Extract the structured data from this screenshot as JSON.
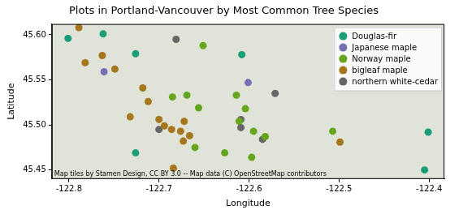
{
  "chart_data": {
    "type": "scatter",
    "title": "Plots in Portland-Vancouver by Most Common Tree Species",
    "x_label": "Longitude",
    "y_label": "Latitude",
    "annotations": [
      "Map tiles by Stamen Design, CC BY 3.0 -- Map data (C) OpenStreetMap contributors"
    ],
    "xlim": [
      -122.819,
      -122.383
    ],
    "xticks": [
      -122.8,
      -122.7,
      -122.6,
      -122.5,
      -122.4
    ],
    "ylim": [
      45.44,
      45.612
    ],
    "yticks": [
      {
        "value": 45.45,
        "label": "45.45"
      },
      {
        "value": 45.5,
        "label": "45.50"
      },
      {
        "value": 45.55,
        "label": "45.55"
      },
      {
        "value": 45.6,
        "label": "45.60"
      }
    ],
    "grid": false,
    "legend": "upper right",
    "series": [
      {
        "name": "Douglas-fir",
        "color": "#1b9e77",
        "marker": "circle",
        "x": [
          -122.801,
          -122.762,
          -122.726,
          -122.608,
          -122.726,
          -122.401,
          -122.405
        ],
        "y": [
          45.596,
          45.601,
          45.579,
          45.578,
          45.469,
          45.492,
          45.45
        ]
      },
      {
        "name": "Japanese maple",
        "color": "#7570b3",
        "marker": "circle",
        "x": [
          -122.761,
          -122.601
        ],
        "y": [
          45.559,
          45.547
        ]
      },
      {
        "name": "Norway maple",
        "color": "#66a61e",
        "marker": "circle",
        "x": [
          -122.651,
          -122.669,
          -122.685,
          -122.656,
          -122.614,
          -122.604,
          -122.611,
          -122.595,
          -122.582,
          -122.507,
          -122.66,
          -122.627,
          -122.597
        ],
        "y": [
          45.588,
          45.533,
          45.531,
          45.519,
          45.533,
          45.518,
          45.504,
          45.493,
          45.487,
          45.493,
          45.475,
          45.469,
          45.464
        ]
      },
      {
        "name": "bigleaf maple",
        "color": "#a6761d",
        "marker": "circle",
        "x": [
          -122.789,
          -122.782,
          -122.763,
          -122.749,
          -122.718,
          -122.712,
          -122.732,
          -122.7,
          -122.694,
          -122.672,
          -122.676,
          -122.666,
          -122.673,
          -122.686,
          -122.499,
          -122.684
        ],
        "y": [
          45.608,
          45.569,
          45.577,
          45.562,
          45.541,
          45.526,
          45.509,
          45.506,
          45.499,
          45.504,
          45.493,
          45.488,
          45.482,
          45.495,
          45.481,
          45.452
        ]
      },
      {
        "name": "northern white-cedar",
        "color": "#666666",
        "marker": "circle",
        "x": [
          -122.681,
          -122.7,
          -122.609,
          -122.609,
          -122.585,
          -122.571
        ],
        "y": [
          45.595,
          45.495,
          45.506,
          45.497,
          45.484,
          45.535
        ]
      }
    ]
  }
}
